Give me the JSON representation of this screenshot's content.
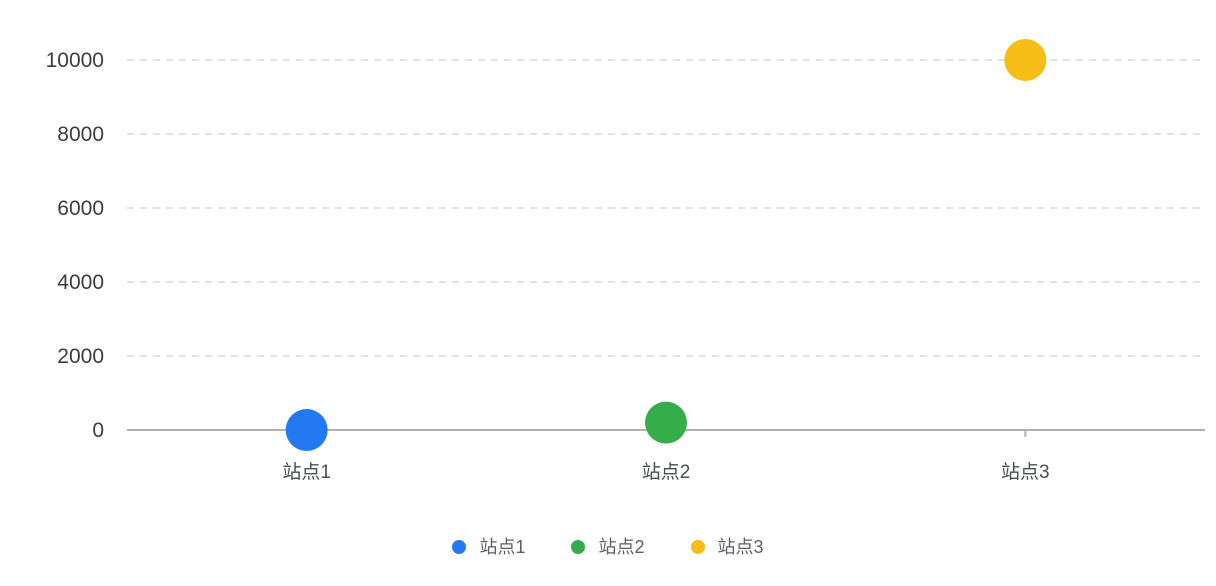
{
  "chart_data": {
    "type": "scatter",
    "title": "",
    "xlabel": "",
    "ylabel": "",
    "categories": [
      "站点1",
      "站点2",
      "站点3"
    ],
    "series": [
      {
        "name": "站点1",
        "category": "站点1",
        "value": 0,
        "color": "#2379F2"
      },
      {
        "name": "站点2",
        "category": "站点2",
        "value": 200,
        "color": "#36AD4B"
      },
      {
        "name": "站点3",
        "category": "站点3",
        "value": 10000,
        "color": "#F6BD16"
      }
    ],
    "yticks": [
      0,
      2000,
      4000,
      6000,
      8000,
      10000
    ],
    "ytick_labels": [
      "0",
      "2000",
      "4000",
      "6000",
      "8000",
      "10000"
    ],
    "ylim": [
      0,
      10000
    ],
    "grid": "horizontal-dashed",
    "legend_position": "bottom",
    "legend_items": [
      "站点1",
      "站点2",
      "站点3"
    ]
  },
  "colors": {
    "background": "#ffffff",
    "axis_line": "#b1b1b1",
    "grid_line": "#e2e2e2",
    "y_tick_label": "#3d3d3d",
    "x_tick_label": "#4a4d52",
    "legend_label": "#5b5f66",
    "point_blue": "#2379F2",
    "point_green": "#36AD4B",
    "point_yellow": "#F6BD16"
  }
}
